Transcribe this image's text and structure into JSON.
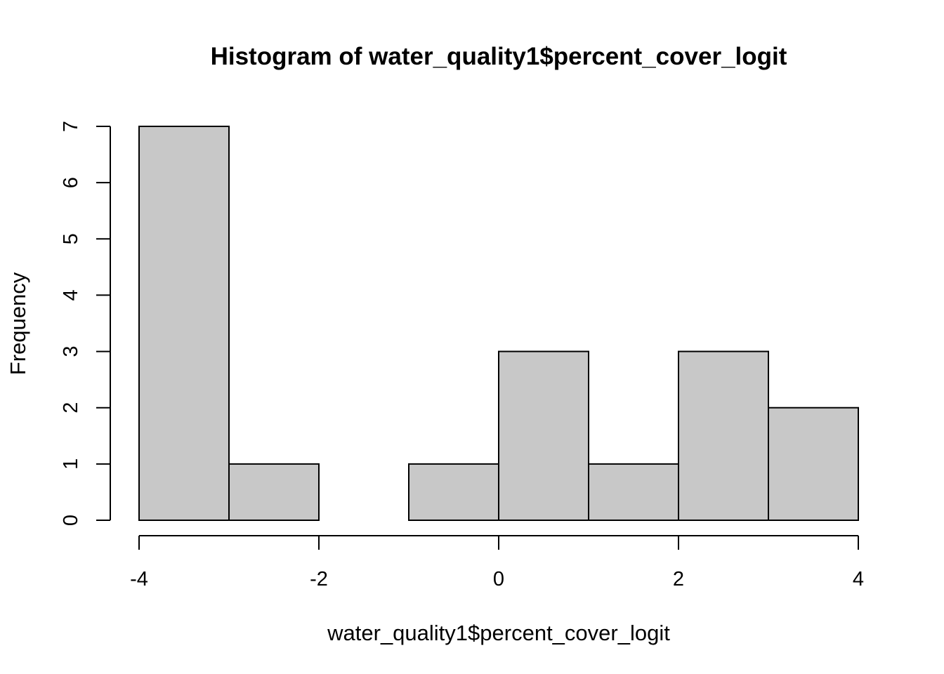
{
  "chart_data": {
    "type": "bar",
    "title": "Histogram of water_quality1$percent_cover_logit",
    "xlabel": "water_quality1$percent_cover_logit",
    "ylabel": "Frequency",
    "bins": [
      {
        "x0": -4,
        "x1": -3,
        "count": 7
      },
      {
        "x0": -3,
        "x1": -2,
        "count": 1
      },
      {
        "x0": -2,
        "x1": -1,
        "count": 0
      },
      {
        "x0": -1,
        "x1": 0,
        "count": 1
      },
      {
        "x0": 0,
        "x1": 1,
        "count": 3
      },
      {
        "x0": 1,
        "x1": 2,
        "count": 1
      },
      {
        "x0": 2,
        "x1": 3,
        "count": 3
      },
      {
        "x0": 3,
        "x1": 4,
        "count": 2
      }
    ],
    "xlim": [
      -4,
      4
    ],
    "ylim": [
      0,
      7
    ],
    "xticks": [
      -4,
      -2,
      0,
      2,
      4
    ],
    "xtick_labels": [
      "-4",
      "-2",
      "0",
      "2",
      "4"
    ],
    "yticks": [
      0,
      1,
      2,
      3,
      4,
      5,
      6,
      7
    ],
    "ytick_labels": [
      "0",
      "1",
      "2",
      "3",
      "4",
      "5",
      "6",
      "7"
    ],
    "bar_fill": "#c8c8c8",
    "bar_stroke": "#000000",
    "grid": false,
    "legend": "none"
  }
}
